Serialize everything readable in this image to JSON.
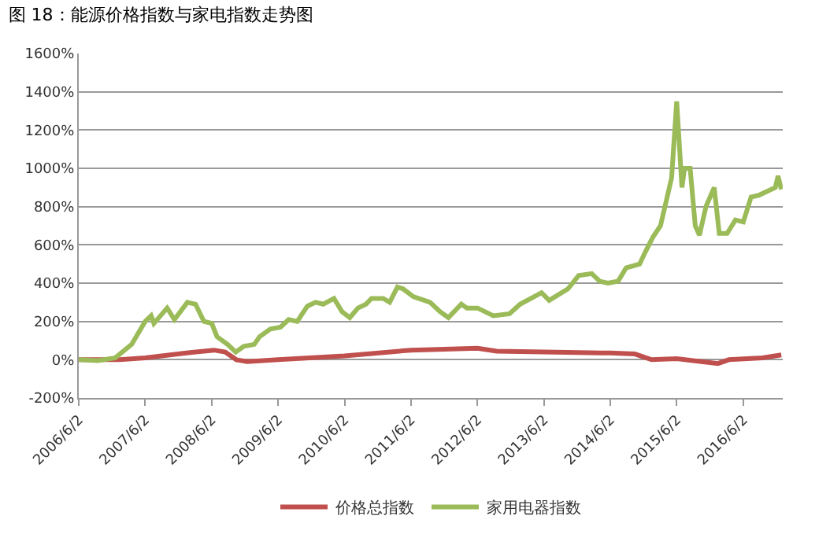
{
  "chart_data": {
    "type": "line",
    "title": "图 18：能源价格指数与家电指数走势图",
    "series": [
      {
        "name": "价格总指数",
        "color": "#c0504d",
        "x": [
          "2006-06-02",
          "2007-01-15",
          "2007-06-02",
          "2008-01-15",
          "2008-06-15",
          "2008-08-15",
          "2008-10-15",
          "2008-12-15",
          "2009-06-02",
          "2010-06-02",
          "2011-06-02",
          "2012-06-02",
          "2012-09-15",
          "2013-06-02",
          "2014-06-02",
          "2014-10-15",
          "2015-01-15",
          "2015-06-02",
          "2015-10-15",
          "2016-01-15",
          "2016-03-15",
          "2016-09-15",
          "2016-12-28"
        ],
        "values": [
          0,
          0,
          10,
          35,
          50,
          40,
          0,
          -10,
          0,
          20,
          50,
          60,
          45,
          40,
          35,
          30,
          0,
          5,
          -10,
          -20,
          0,
          10,
          25
        ]
      },
      {
        "name": "家用电器指数",
        "color": "#9bbb59",
        "x": [
          "2006-06-02",
          "2006-09-15",
          "2006-12-20",
          "2007-03-20",
          "2007-06-02",
          "2007-07-05",
          "2007-07-20",
          "2007-10-01",
          "2007-11-10",
          "2008-01-20",
          "2008-03-05",
          "2008-04-20",
          "2008-06-02",
          "2008-07-01",
          "2008-08-28",
          "2008-10-12",
          "2008-11-25",
          "2009-01-22",
          "2009-02-20",
          "2009-04-20",
          "2009-06-15",
          "2009-07-30",
          "2009-09-15",
          "2009-11-10",
          "2009-12-25",
          "2010-02-05",
          "2010-04-05",
          "2010-05-20",
          "2010-07-01",
          "2010-08-15",
          "2010-09-28",
          "2010-10-28",
          "2011-01-01",
          "2011-02-05",
          "2011-03-20",
          "2011-04-20",
          "2011-06-15",
          "2011-09-15",
          "2011-11-10",
          "2011-12-25",
          "2012-03-05",
          "2012-04-05",
          "2012-06-02",
          "2012-08-28",
          "2012-11-25",
          "2013-01-22",
          "2013-05-20",
          "2013-07-01",
          "2013-10-12",
          "2013-12-10",
          "2014-02-20",
          "2014-04-05",
          "2014-05-20",
          "2014-07-15",
          "2014-08-28",
          "2014-11-10",
          "2014-12-10",
          "2015-01-22",
          "2015-03-05",
          "2015-05-05",
          "2015-06-02",
          "2015-07-01",
          "2015-07-15",
          "2015-08-15",
          "2015-09-12",
          "2015-10-05",
          "2015-11-10",
          "2015-12-25",
          "2016-01-22",
          "2016-03-05",
          "2016-04-20",
          "2016-06-02",
          "2016-07-15",
          "2016-08-28",
          "2016-11-25",
          "2016-12-10",
          "2016-12-28"
        ],
        "values": [
          0,
          -5,
          10,
          80,
          200,
          230,
          190,
          270,
          210,
          300,
          290,
          200,
          190,
          120,
          80,
          40,
          70,
          80,
          120,
          160,
          170,
          210,
          200,
          280,
          300,
          290,
          320,
          250,
          220,
          270,
          290,
          320,
          320,
          300,
          380,
          370,
          330,
          300,
          250,
          220,
          290,
          270,
          270,
          230,
          240,
          290,
          350,
          310,
          370,
          440,
          450,
          410,
          400,
          410,
          480,
          500,
          560,
          640,
          700,
          950,
          1350,
          900,
          1000,
          1000,
          700,
          650,
          800,
          900,
          660,
          660,
          730,
          720,
          850,
          860,
          900,
          960,
          890
        ]
      }
    ],
    "xlim": [
      "2006-06-02",
      "2017-01-05"
    ],
    "xticks": [
      {
        "value": "2006-06-02",
        "label": "2006/6/2"
      },
      {
        "value": "2007-06-02",
        "label": "2007/6/2"
      },
      {
        "value": "2008-06-02",
        "label": "2008/6/2"
      },
      {
        "value": "2009-06-02",
        "label": "2009/6/2"
      },
      {
        "value": "2010-06-02",
        "label": "2010/6/2"
      },
      {
        "value": "2011-06-02",
        "label": "2011/6/2"
      },
      {
        "value": "2012-06-02",
        "label": "2012/6/2"
      },
      {
        "value": "2013-06-02",
        "label": "2013/6/2"
      },
      {
        "value": "2014-06-02",
        "label": "2014/6/2"
      },
      {
        "value": "2015-06-02",
        "label": "2015/6/2"
      },
      {
        "value": "2016-06-02",
        "label": "2016/6/2"
      }
    ],
    "ylim": [
      -200,
      1600
    ],
    "yticks": [
      {
        "value": -200,
        "label": "-200%"
      },
      {
        "value": 0,
        "label": "0%"
      },
      {
        "value": 200,
        "label": "200%"
      },
      {
        "value": 400,
        "label": "400%"
      },
      {
        "value": 600,
        "label": "600%"
      },
      {
        "value": 800,
        "label": "800%"
      },
      {
        "value": 1000,
        "label": "1000%"
      },
      {
        "value": 1200,
        "label": "1200%"
      },
      {
        "value": 1400,
        "label": "1400%"
      },
      {
        "value": 1600,
        "label": "1600%"
      }
    ],
    "grid": "y",
    "legend": "bottom",
    "marker": "none",
    "line_style": "solid"
  }
}
